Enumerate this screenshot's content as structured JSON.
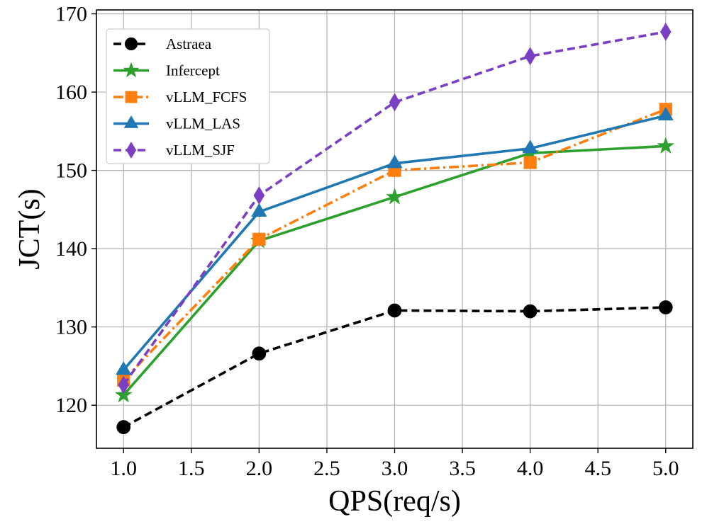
{
  "chart_data": {
    "type": "line",
    "title": "",
    "xlabel": "QPS(req/s)",
    "ylabel": "JCT(s)",
    "x": [
      1.0,
      2.0,
      3.0,
      4.0,
      5.0
    ],
    "xlim": [
      0.8,
      5.2
    ],
    "ylim": [
      114.5,
      170.5
    ],
    "xticks": [
      1.0,
      1.5,
      2.0,
      2.5,
      3.0,
      3.5,
      4.0,
      4.5,
      5.0
    ],
    "xtick_labels": [
      "1.0",
      "1.5",
      "2.0",
      "2.5",
      "3.0",
      "3.5",
      "4.0",
      "4.5",
      "5.0"
    ],
    "yticks": [
      120,
      130,
      140,
      150,
      160,
      170
    ],
    "ytick_labels": [
      "120",
      "130",
      "140",
      "150",
      "160",
      "170"
    ],
    "grid": true,
    "legend_position": "upper-left",
    "series": [
      {
        "name": "Astraea",
        "values": [
          117.2,
          126.6,
          132.1,
          132.0,
          132.5
        ],
        "color": "#000000",
        "marker": "circle",
        "dash": "dashed"
      },
      {
        "name": "Infercept",
        "values": [
          121.3,
          141.0,
          146.6,
          152.2,
          153.1
        ],
        "color": "#2ca02c",
        "marker": "star",
        "dash": "solid"
      },
      {
        "name": "vLLM_FCFS",
        "values": [
          123.2,
          141.2,
          150.0,
          151.0,
          157.8
        ],
        "color": "#ff7f0e",
        "marker": "square",
        "dash": "dashdot"
      },
      {
        "name": "vLLM_LAS",
        "values": [
          124.5,
          144.7,
          150.9,
          152.8,
          157.0
        ],
        "color": "#1f77b4",
        "marker": "triangle",
        "dash": "solid"
      },
      {
        "name": "vLLM_SJF",
        "values": [
          122.6,
          146.8,
          158.7,
          164.6,
          167.7
        ],
        "color": "#7b3fc4",
        "marker": "diamond",
        "dash": "dashed"
      }
    ]
  }
}
